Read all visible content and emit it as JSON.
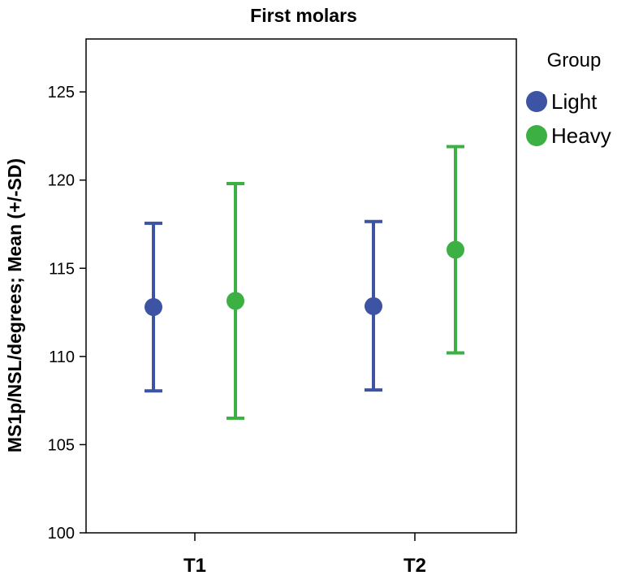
{
  "chart_data": {
    "type": "scatter",
    "title": "First molars",
    "ylabel": "MS1p/NSL/degrees; Mean (+/-SD)",
    "xlabel": "",
    "categories": [
      "T1",
      "T2"
    ],
    "ylim": [
      100,
      128
    ],
    "yticks": [
      100,
      105,
      110,
      115,
      120,
      125
    ],
    "grid": false,
    "legend": {
      "title": "Group",
      "placement": "right"
    },
    "series": [
      {
        "name": "Light",
        "color": "#3d53a3",
        "mean": [
          112.8,
          112.85
        ],
        "lower": [
          108.05,
          108.1
        ],
        "upper": [
          117.55,
          117.65
        ]
      },
      {
        "name": "Heavy",
        "color": "#3cb043",
        "mean": [
          113.15,
          116.05
        ],
        "lower": [
          106.5,
          110.2
        ],
        "upper": [
          119.8,
          121.9
        ]
      }
    ]
  }
}
